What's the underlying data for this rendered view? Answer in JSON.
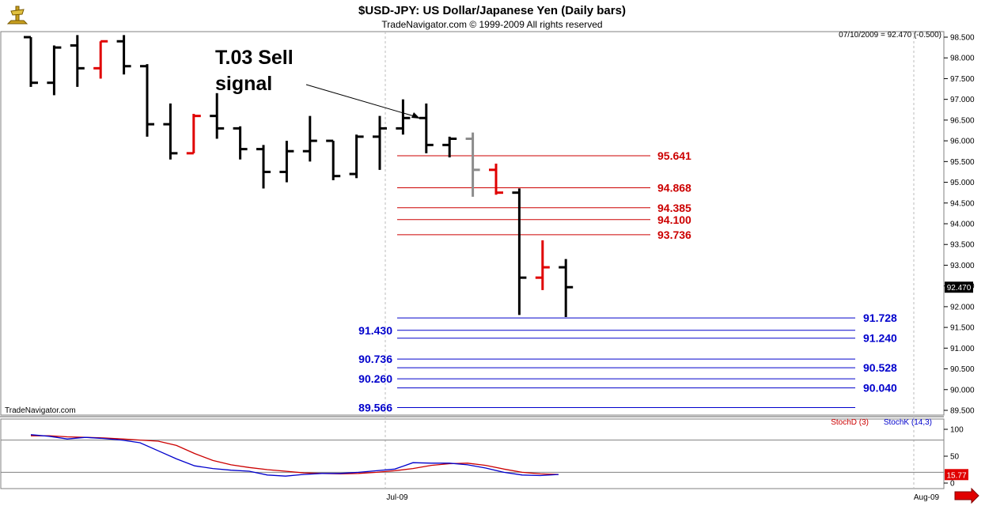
{
  "header": {
    "title": "$USD-JPY:  US Dollar/Japanese Yen  (Daily bars)",
    "copyright": "TradeNavigator.com © 1999-2009 All rights reserved",
    "readout": "07/10/2009 = 92.470 (-0.500)",
    "watermark": "TradeNavigator.com"
  },
  "annotation": {
    "line1": "T.03 Sell",
    "line2": "signal"
  },
  "colors": {
    "up_bar": "#000000",
    "red_bar": "#e00000",
    "gray_bar": "#8c8c8c",
    "resistance": "#cc0000",
    "support": "#0000cc",
    "stoch_d": "#cc0000",
    "stoch_k": "#0000cc",
    "last_price_bg": "#000000",
    "stoch_last_bg": "#e00000"
  },
  "chart_data": [
    {
      "type": "ohlc",
      "ylim": [
        89.5,
        98.55
      ],
      "yticks": [
        "89.500",
        "90.000",
        "90.500",
        "91.000",
        "91.500",
        "92.000",
        "92.500",
        "93.000",
        "93.500",
        "94.000",
        "94.500",
        "95.000",
        "95.500",
        "96.000",
        "96.500",
        "97.000",
        "97.500",
        "98.000",
        "98.500"
      ],
      "ytick_values": [
        89.5,
        90,
        90.5,
        91,
        91.5,
        92,
        92.5,
        93,
        93.5,
        94,
        94.5,
        95,
        95.5,
        96,
        96.5,
        97,
        97.5,
        98,
        98.5
      ],
      "xticks": [
        "Jul-09",
        "Aug-09"
      ],
      "last_price": "92.470",
      "bars": [
        {
          "h": 98.5,
          "l": 97.3,
          "o": 98.5,
          "c": 97.4,
          "color": "black"
        },
        {
          "h": 98.3,
          "l": 97.1,
          "o": 97.4,
          "c": 98.25,
          "color": "black"
        },
        {
          "h": 98.55,
          "l": 97.3,
          "o": 98.3,
          "c": 97.75,
          "color": "black"
        },
        {
          "h": 98.4,
          "l": 97.5,
          "o": 97.75,
          "c": 98.4,
          "color": "red"
        },
        {
          "h": 98.55,
          "l": 97.6,
          "o": 98.4,
          "c": 97.8,
          "color": "black"
        },
        {
          "h": 97.85,
          "l": 96.1,
          "o": 97.8,
          "c": 96.4,
          "color": "black"
        },
        {
          "h": 96.9,
          "l": 95.55,
          "o": 96.4,
          "c": 95.7,
          "color": "black"
        },
        {
          "h": 96.65,
          "l": 95.7,
          "o": 95.7,
          "c": 96.6,
          "color": "red"
        },
        {
          "h": 97.15,
          "l": 96.05,
          "o": 96.6,
          "c": 96.3,
          "color": "black"
        },
        {
          "h": 96.35,
          "l": 95.55,
          "o": 96.3,
          "c": 95.8,
          "color": "black"
        },
        {
          "h": 95.9,
          "l": 94.85,
          "o": 95.8,
          "c": 95.25,
          "color": "black"
        },
        {
          "h": 96.0,
          "l": 95.0,
          "o": 95.25,
          "c": 95.75,
          "color": "black"
        },
        {
          "h": 96.6,
          "l": 95.5,
          "o": 95.75,
          "c": 96.0,
          "color": "black"
        },
        {
          "h": 96.0,
          "l": 95.05,
          "o": 96.0,
          "c": 95.15,
          "color": "black"
        },
        {
          "h": 96.15,
          "l": 95.1,
          "o": 95.2,
          "c": 96.1,
          "color": "black"
        },
        {
          "h": 96.6,
          "l": 95.3,
          "o": 96.1,
          "c": 96.3,
          "color": "black"
        },
        {
          "h": 97.0,
          "l": 96.15,
          "o": 96.3,
          "c": 96.55,
          "color": "black"
        },
        {
          "h": 96.9,
          "l": 95.7,
          "o": 96.55,
          "c": 95.9,
          "color": "black"
        },
        {
          "h": 96.1,
          "l": 95.6,
          "o": 95.9,
          "c": 96.05,
          "color": "black"
        },
        {
          "h": 96.2,
          "l": 94.65,
          "o": 96.05,
          "c": 95.3,
          "color": "gray"
        },
        {
          "h": 95.45,
          "l": 94.7,
          "o": 95.3,
          "c": 94.75,
          "color": "red"
        },
        {
          "h": 94.85,
          "l": 91.8,
          "o": 94.75,
          "c": 92.7,
          "color": "black"
        },
        {
          "h": 93.6,
          "l": 92.4,
          "o": 92.7,
          "c": 92.95,
          "color": "red"
        },
        {
          "h": 93.15,
          "l": 91.75,
          "o": 92.95,
          "c": 92.47,
          "color": "black"
        }
      ],
      "resistance_levels": [
        "95.641",
        "94.868",
        "94.385",
        "94.100",
        "93.736"
      ],
      "resistance_values": [
        95.641,
        94.868,
        94.385,
        94.1,
        93.736
      ],
      "support_levels": [
        {
          "label": "91.728",
          "value": 91.728,
          "side": "right"
        },
        {
          "label": "91.430",
          "value": 91.43,
          "side": "left"
        },
        {
          "label": "91.240",
          "value": 91.24,
          "side": "right"
        },
        {
          "label": "90.736",
          "value": 90.736,
          "side": "left"
        },
        {
          "label": "90.528",
          "value": 90.528,
          "side": "right"
        },
        {
          "label": "90.260",
          "value": 90.26,
          "side": "left"
        },
        {
          "label": "90.040",
          "value": 90.04,
          "side": "right"
        },
        {
          "label": "89.566",
          "value": 89.566,
          "side": "left"
        }
      ]
    },
    {
      "type": "line",
      "ylim": [
        0,
        100
      ],
      "yticks": [
        "100",
        "50",
        "0"
      ],
      "ytick_values": [
        100,
        50,
        0
      ],
      "last_value": "15.77",
      "series": [
        {
          "name": "StochD (3)",
          "values": [
            88,
            88,
            86,
            85,
            84,
            82,
            80,
            78,
            70,
            55,
            42,
            34,
            29,
            25,
            22,
            19,
            18,
            17,
            18,
            20,
            23,
            27,
            33,
            36,
            37,
            33,
            26,
            20,
            17,
            16
          ]
        },
        {
          "name": "StochK (14,3)",
          "values": [
            90,
            87,
            82,
            85,
            83,
            80,
            75,
            60,
            45,
            32,
            27,
            24,
            22,
            15,
            13,
            16,
            18,
            18,
            20,
            23,
            26,
            38,
            37,
            37,
            34,
            28,
            20,
            15,
            14,
            16
          ]
        }
      ]
    }
  ]
}
